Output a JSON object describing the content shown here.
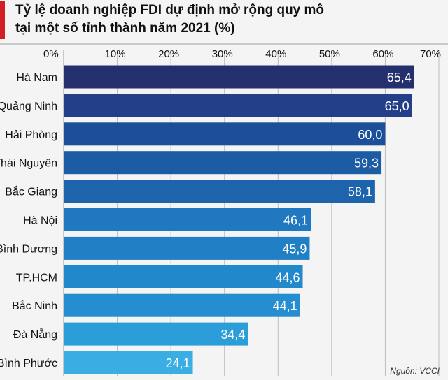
{
  "header": {
    "title_line1": "Tỷ lệ doanh nghiệp FDI dự định mở rộng quy mô",
    "title_line2": "tại một số tỉnh thành năm 2021 (%)"
  },
  "source": "Nguồn: VCCI",
  "colors": {
    "accent": "#d21f26",
    "bar_gradient": [
      "#24306e",
      "#233f8a",
      "#1c4f9a",
      "#1b5ca5",
      "#1d64ad",
      "#1f78c0",
      "#217fc5",
      "#2288cc",
      "#258ed0",
      "#2b9ed9",
      "#3aaee3"
    ],
    "grid": "#bdbdbd",
    "text": "#111111"
  },
  "chart_data": {
    "type": "bar",
    "orientation": "horizontal",
    "title": "Tỷ lệ doanh nghiệp FDI dự định mở rộng quy mô tại một số tỉnh thành năm 2021 (%)",
    "categories": [
      "Hà Nam",
      "Quảng Ninh",
      "Hải Phòng",
      "Thái Nguyên",
      "Bắc Giang",
      "Hà Nội",
      "Bình Dương",
      "TP.HCM",
      "Bắc Ninh",
      "Đà Nẵng",
      "Bình Phước"
    ],
    "values": [
      65.4,
      65.0,
      60.0,
      59.3,
      58.1,
      46.1,
      45.9,
      44.6,
      44.1,
      34.4,
      24.1
    ],
    "value_labels": [
      "65,4",
      "65,0",
      "60,0",
      "59,3",
      "58,1",
      "46,1",
      "45,9",
      "44,6",
      "44,1",
      "34,4",
      "24,1"
    ],
    "xlim": [
      0,
      70
    ],
    "ticks": [
      0,
      10,
      20,
      30,
      40,
      50,
      60,
      70
    ],
    "tick_labels": [
      "0%",
      "10%",
      "20%",
      "30%",
      "40%",
      "50%",
      "60%",
      "70%"
    ],
    "xlabel": "",
    "ylabel": "",
    "grid": true
  }
}
